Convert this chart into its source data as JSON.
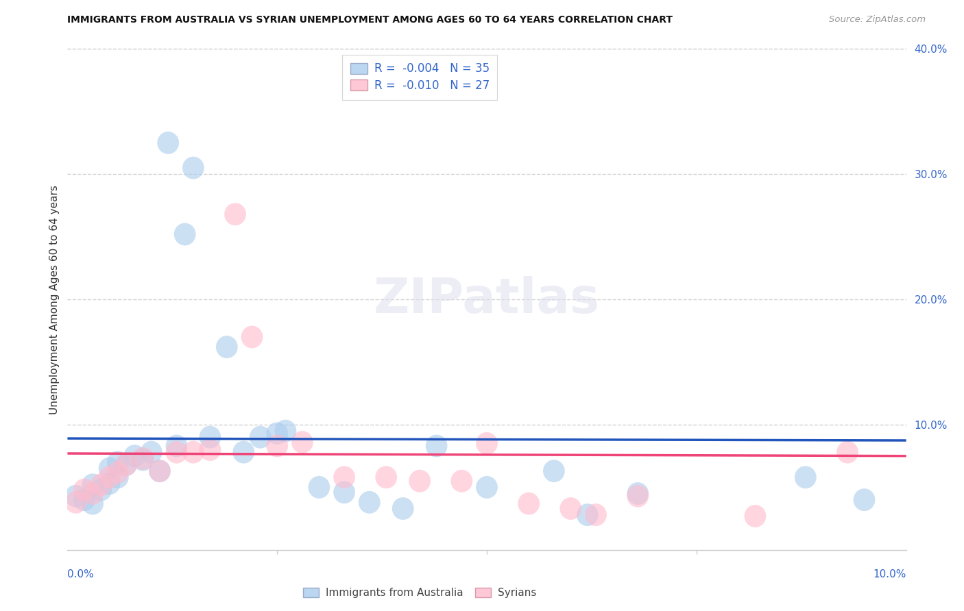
{
  "title": "IMMIGRANTS FROM AUSTRALIA VS SYRIAN UNEMPLOYMENT AMONG AGES 60 TO 64 YEARS CORRELATION CHART",
  "source": "Source: ZipAtlas.com",
  "ylabel": "Unemployment Among Ages 60 to 64 years",
  "xlim": [
    0.0,
    0.1
  ],
  "ylim": [
    0.0,
    0.4
  ],
  "blue_R": "-0.004",
  "blue_N": "35",
  "pink_R": "-0.010",
  "pink_N": "27",
  "blue_fill": "#AACCEE",
  "pink_fill": "#FFBBCC",
  "blue_line_color": "#2255BB",
  "pink_line_color": "#EE4477",
  "label_color": "#3366CC",
  "title_color": "#111111",
  "source_color": "#999999",
  "grid_color": "#CCCCCC",
  "blue_line_intercept": 0.089,
  "blue_line_slope": -0.016,
  "pink_line_intercept": 0.077,
  "pink_line_slope": -0.02,
  "blue_x": [
    0.001,
    0.002,
    0.003,
    0.003,
    0.004,
    0.005,
    0.005,
    0.006,
    0.006,
    0.007,
    0.008,
    0.009,
    0.01,
    0.011,
    0.012,
    0.013,
    0.014,
    0.015,
    0.017,
    0.019,
    0.021,
    0.023,
    0.025,
    0.026,
    0.03,
    0.033,
    0.036,
    0.04,
    0.044,
    0.05,
    0.058,
    0.062,
    0.068,
    0.088,
    0.095
  ],
  "blue_y": [
    0.043,
    0.04,
    0.037,
    0.052,
    0.048,
    0.053,
    0.065,
    0.058,
    0.07,
    0.068,
    0.075,
    0.072,
    0.078,
    0.063,
    0.325,
    0.083,
    0.252,
    0.305,
    0.09,
    0.162,
    0.078,
    0.09,
    0.093,
    0.095,
    0.05,
    0.046,
    0.038,
    0.033,
    0.083,
    0.05,
    0.063,
    0.028,
    0.045,
    0.058,
    0.04
  ],
  "pink_x": [
    0.001,
    0.002,
    0.003,
    0.004,
    0.005,
    0.006,
    0.007,
    0.009,
    0.011,
    0.013,
    0.015,
    0.017,
    0.02,
    0.022,
    0.025,
    0.028,
    0.033,
    0.038,
    0.042,
    0.047,
    0.05,
    0.055,
    0.06,
    0.063,
    0.068,
    0.082,
    0.093
  ],
  "pink_y": [
    0.038,
    0.048,
    0.045,
    0.052,
    0.058,
    0.062,
    0.068,
    0.073,
    0.063,
    0.078,
    0.078,
    0.08,
    0.268,
    0.17,
    0.083,
    0.086,
    0.058,
    0.058,
    0.055,
    0.055,
    0.085,
    0.037,
    0.033,
    0.028,
    0.043,
    0.027,
    0.078
  ]
}
